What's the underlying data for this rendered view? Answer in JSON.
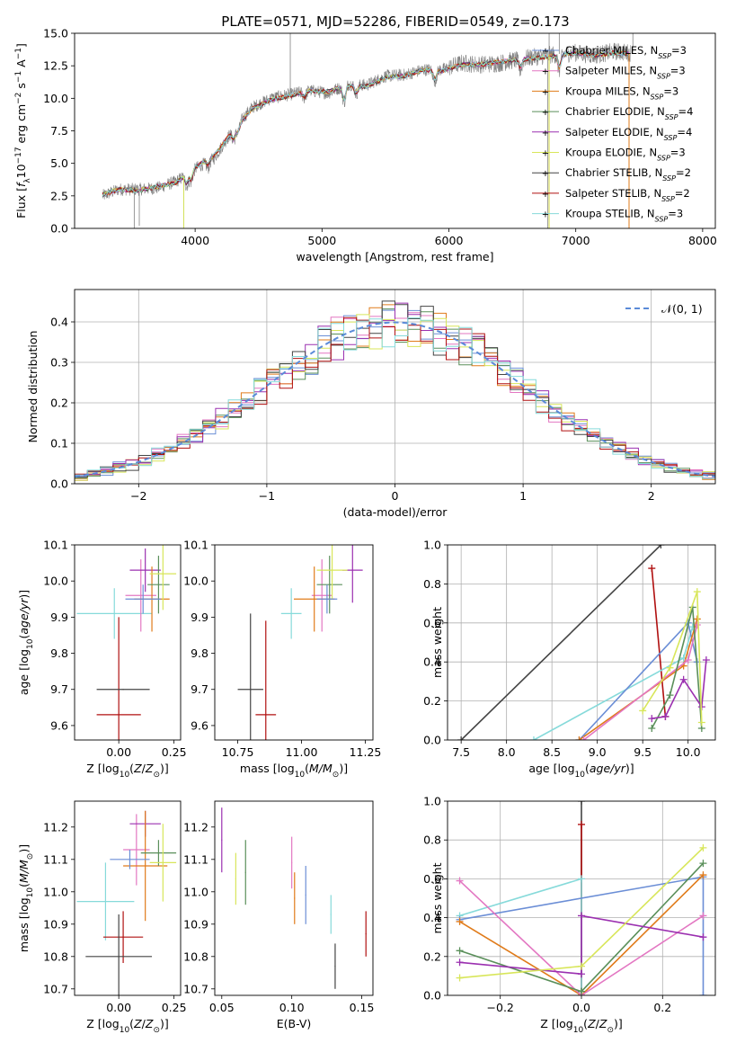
{
  "figure_title": "PLATE=0571, MJD=52286, FIBERID=0549, z=0.173",
  "colors": {
    "chabrier_miles": "#6b8ed6",
    "salpeter_miles": "#e377c2",
    "kroupa_miles": "#e07b1a",
    "chabrier_elodie": "#5a8f5a",
    "salpeter_elodie": "#9b30b0",
    "kroupa_elodie": "#d8e65a",
    "chabrier_stelib": "#444444",
    "salpeter_stelib": "#b01010",
    "kroupa_stelib": "#86dada",
    "observed": "#808080",
    "normal": "#5b8bd8"
  },
  "chart_data": [
    {
      "id": "spectrum",
      "type": "line",
      "xlabel": "wavelength [Angstrom, rest frame]",
      "ylabel": "Flux [f_λ 10^-17 erg cm^-2 s^-1 A^-1]",
      "xlim": [
        3050,
        8100
      ],
      "ylim": [
        0,
        15
      ],
      "xticks": [
        4000,
        5000,
        6000,
        7000,
        8000
      ],
      "yticks": [
        0.0,
        2.5,
        5.0,
        7.5,
        10.0,
        12.5,
        15.0
      ],
      "ytick_labels": [
        "0.0",
        "2.5",
        "5.0",
        "7.5",
        "10.0",
        "12.5",
        "15.0"
      ],
      "legend_position": "top-right",
      "legend": [
        {
          "label": "Chabrier MILES, N",
          "sub": "SSP",
          "tail": "=3",
          "color": "#6b8ed6"
        },
        {
          "label": "Salpeter MILES, N",
          "sub": "SSP",
          "tail": "=3",
          "color": "#e377c2"
        },
        {
          "label": "Kroupa MILES, N",
          "sub": "SSP",
          "tail": "=3",
          "color": "#e07b1a"
        },
        {
          "label": "Chabrier ELODIE, N",
          "sub": "SSP",
          "tail": "=4",
          "color": "#5a8f5a"
        },
        {
          "label": "Salpeter ELODIE, N",
          "sub": "SSP",
          "tail": "=4",
          "color": "#9b30b0"
        },
        {
          "label": "Kroupa ELODIE, N",
          "sub": "SSP",
          "tail": "=3",
          "color": "#d8e65a"
        },
        {
          "label": "Chabrier STELIB, N",
          "sub": "SSP",
          "tail": "=2",
          "color": "#444444"
        },
        {
          "label": "Salpeter STELIB, N",
          "sub": "SSP",
          "tail": "=2",
          "color": "#b01010"
        },
        {
          "label": "Kroupa STELIB, N",
          "sub": "SSP",
          "tail": "=3",
          "color": "#86dada"
        }
      ],
      "series": [
        {
          "name": "observed",
          "x": [
            3270,
            3400,
            3550,
            3700,
            3850,
            4000,
            4150,
            4300,
            4450,
            4600,
            4750,
            4900,
            5050,
            5200,
            5350,
            5500,
            5650,
            5800,
            5950,
            6100,
            6250,
            6400,
            6550,
            6700,
            6850,
            7000,
            7150,
            7300,
            7430
          ],
          "y": [
            2.5,
            3.0,
            3.0,
            3.1,
            3.6,
            4.6,
            5.4,
            7.6,
            9.3,
            10.0,
            10.3,
            10.6,
            10.4,
            11.1,
            11.0,
            11.7,
            11.8,
            12.2,
            12.2,
            12.7,
            12.6,
            12.7,
            13.0,
            13.2,
            13.4,
            13.5,
            13.3,
            13.6,
            13.5
          ]
        },
        {
          "name": "models",
          "x": [
            3270,
            3400,
            3550,
            3700,
            3850,
            4000,
            4150,
            4300,
            4450,
            4600,
            4750,
            4900,
            5050,
            5200,
            5350,
            5500,
            5650,
            5800,
            5950,
            6100,
            6250,
            6400,
            6550,
            6700,
            6850,
            7000,
            7150,
            7300,
            7430
          ],
          "y": [
            2.6,
            3.0,
            2.9,
            3.2,
            3.5,
            4.7,
            5.6,
            7.5,
            9.2,
            9.9,
            10.2,
            10.6,
            10.5,
            11.0,
            10.9,
            11.6,
            11.7,
            12.2,
            12.1,
            12.6,
            12.6,
            12.8,
            13.0,
            13.1,
            13.3,
            13.5,
            13.3,
            13.5,
            13.4
          ]
        }
      ]
    },
    {
      "id": "residuals",
      "type": "area",
      "xlabel": "(data-model)/error",
      "ylabel": "Normed distribution",
      "xlim": [
        -2.5,
        2.5
      ],
      "ylim": [
        0,
        0.48
      ],
      "xticks": [
        -2,
        -1,
        0,
        1,
        2
      ],
      "xtick_labels": [
        "−2",
        "−1",
        "0",
        "1",
        "2"
      ],
      "yticks": [
        0.0,
        0.1,
        0.2,
        0.3,
        0.4
      ],
      "ytick_labels": [
        "0.0",
        "0.1",
        "0.2",
        "0.3",
        "0.4"
      ],
      "grid": true,
      "legend_position": "top-right",
      "legend": [
        {
          "label": "𝒩(0, 1)",
          "color": "#5b8bd8",
          "style": "dashed"
        }
      ],
      "bins": {
        "start": -2.5,
        "width": 0.1,
        "count": 50
      },
      "envelope_mean": 0.0,
      "envelope_sigma": 1.0
    },
    {
      "id": "age_vs_Z",
      "type": "scatter",
      "xlabel": "Z [log10(Z/Z⊙)]",
      "ylabel": "age  [log10(age/yr)]",
      "xlim": [
        -0.2,
        0.28
      ],
      "ylim": [
        9.56,
        10.1
      ],
      "xticks": [
        0.0,
        0.25
      ],
      "xtick_labels": [
        "0.00",
        "0.25"
      ],
      "yticks": [
        9.6,
        9.7,
        9.8,
        9.9,
        10.0,
        10.1
      ],
      "ytick_labels": [
        "9.6",
        "9.7",
        "9.8",
        "9.9",
        "10.0",
        "10.1"
      ],
      "points": [
        {
          "x": -0.02,
          "y": 9.91,
          "xerr": 0.17,
          "yerr": 0.07,
          "color": "#86dada"
        },
        {
          "x": 0.0,
          "y": 9.63,
          "xerr": 0.1,
          "yerr": 0.27,
          "color": "#b01010"
        },
        {
          "x": 0.02,
          "y": 9.7,
          "xerr": 0.12,
          "yerr": 0.0,
          "color": "#444444"
        },
        {
          "x": 0.1,
          "y": 9.96,
          "xerr": 0.07,
          "yerr": 0.1,
          "color": "#e377c2"
        },
        {
          "x": 0.12,
          "y": 10.03,
          "xerr": 0.07,
          "yerr": 0.06,
          "color": "#9b30b0"
        },
        {
          "x": 0.15,
          "y": 9.95,
          "xerr": 0.08,
          "yerr": 0.09,
          "color": "#e07b1a"
        },
        {
          "x": 0.18,
          "y": 9.99,
          "xerr": 0.05,
          "yerr": 0.08,
          "color": "#5a8f5a"
        },
        {
          "x": 0.2,
          "y": 10.02,
          "xerr": 0.06,
          "yerr": 0.1,
          "color": "#d8e65a"
        },
        {
          "x": 0.11,
          "y": 9.95,
          "xerr": 0.08,
          "yerr": 0.04,
          "color": "#6b8ed6"
        }
      ]
    },
    {
      "id": "age_vs_mass",
      "type": "scatter",
      "xlabel": "mass [log10(M/M⊙)]",
      "ylabel": "",
      "xlim": [
        10.66,
        11.28
      ],
      "ylim": [
        9.56,
        10.1
      ],
      "xticks": [
        10.75,
        11.0,
        11.25
      ],
      "xtick_labels": [
        "10.75",
        "11.00",
        "11.25"
      ],
      "yticks": [
        9.6,
        9.7,
        9.8,
        9.9,
        10.0,
        10.1
      ],
      "ytick_labels": [
        "9.6",
        "9.7",
        "9.8",
        "9.9",
        "10.0",
        "10.1"
      ],
      "points": [
        {
          "x": 10.96,
          "y": 9.91,
          "xerr": 0.04,
          "yerr": 0.07,
          "color": "#86dada"
        },
        {
          "x": 10.86,
          "y": 9.63,
          "xerr": 0.04,
          "yerr": 0.26,
          "color": "#b01010"
        },
        {
          "x": 10.8,
          "y": 9.7,
          "xerr": 0.05,
          "yerr": 0.21,
          "color": "#444444"
        },
        {
          "x": 11.08,
          "y": 9.96,
          "xerr": 0.04,
          "yerr": 0.1,
          "color": "#e377c2"
        },
        {
          "x": 11.2,
          "y": 10.03,
          "xerr": 0.04,
          "yerr": 0.09,
          "color": "#9b30b0"
        },
        {
          "x": 11.05,
          "y": 9.95,
          "xerr": 0.08,
          "yerr": 0.09,
          "color": "#e07b1a"
        },
        {
          "x": 11.11,
          "y": 9.99,
          "xerr": 0.05,
          "yerr": 0.08,
          "color": "#5a8f5a"
        },
        {
          "x": 11.12,
          "y": 10.03,
          "xerr": 0.06,
          "yerr": 0.08,
          "color": "#d8e65a"
        },
        {
          "x": 11.1,
          "y": 9.95,
          "xerr": 0.04,
          "yerr": 0.04,
          "color": "#6b8ed6"
        }
      ]
    },
    {
      "id": "weight_vs_age",
      "type": "line",
      "xlabel": "age  [log10(age/yr)]",
      "ylabel": "mass weight",
      "xlim": [
        7.35,
        10.3
      ],
      "ylim": [
        0,
        1
      ],
      "xticks": [
        7.5,
        8.0,
        8.5,
        9.0,
        9.5,
        10.0
      ],
      "xtick_labels": [
        "7.5",
        "8.0",
        "8.5",
        "9.0",
        "9.5",
        "10.0"
      ],
      "yticks": [
        0.0,
        0.2,
        0.4,
        0.6,
        0.8,
        1.0
      ],
      "ytick_labels": [
        "0.0",
        "0.2",
        "0.4",
        "0.6",
        "0.8",
        "1.0"
      ],
      "grid": true,
      "series": [
        {
          "color": "#444444",
          "x": [
            7.5,
            9.7
          ],
          "y": [
            0.0,
            1.0
          ]
        },
        {
          "color": "#b01010",
          "x": [
            9.6,
            9.75
          ],
          "y": [
            0.88,
            0.12
          ]
        },
        {
          "color": "#86dada",
          "x": [
            8.3,
            9.95,
            10.05
          ],
          "y": [
            0.0,
            0.42,
            0.58
          ]
        },
        {
          "color": "#6b8ed6",
          "x": [
            8.8,
            10.0,
            10.1
          ],
          "y": [
            0.0,
            0.6,
            0.4
          ]
        },
        {
          "color": "#e07b1a",
          "x": [
            8.8,
            9.95,
            10.1
          ],
          "y": [
            0.0,
            0.38,
            0.62
          ]
        },
        {
          "color": "#e377c2",
          "x": [
            8.85,
            10.0,
            10.1
          ],
          "y": [
            0.0,
            0.41,
            0.59
          ]
        },
        {
          "color": "#5a8f5a",
          "x": [
            9.6,
            9.8,
            10.05,
            10.15
          ],
          "y": [
            0.06,
            0.23,
            0.68,
            0.06
          ]
        },
        {
          "color": "#9b30b0",
          "x": [
            9.6,
            9.75,
            9.95,
            10.15,
            10.2
          ],
          "y": [
            0.11,
            0.12,
            0.31,
            0.17,
            0.41
          ]
        },
        {
          "color": "#d8e65a",
          "x": [
            9.5,
            9.8,
            10.1,
            10.15
          ],
          "y": [
            0.15,
            0.37,
            0.76,
            0.09
          ]
        }
      ]
    },
    {
      "id": "mass_vs_Z",
      "type": "scatter",
      "xlabel": "Z [log10(Z/Z⊙)]",
      "ylabel": "mass [log10(M/M⊙)]",
      "xlim": [
        -0.2,
        0.28
      ],
      "ylim": [
        10.68,
        11.28
      ],
      "xticks": [
        0.0,
        0.25
      ],
      "xtick_labels": [
        "0.00",
        "0.25"
      ],
      "yticks": [
        10.7,
        10.8,
        10.9,
        11.0,
        11.1,
        11.2
      ],
      "ytick_labels": [
        "10.7",
        "10.8",
        "10.9",
        "11.0",
        "11.1",
        "11.2"
      ],
      "points": [
        {
          "x": -0.06,
          "y": 10.97,
          "xerr": 0.13,
          "yerr": 0.12,
          "color": "#86dada"
        },
        {
          "x": 0.02,
          "y": 10.86,
          "xerr": 0.09,
          "yerr": 0.08,
          "color": "#b01010"
        },
        {
          "x": 0.0,
          "y": 10.8,
          "xerr": 0.15,
          "yerr": 0.13,
          "color": "#444444"
        },
        {
          "x": 0.08,
          "y": 11.13,
          "xerr": 0.06,
          "yerr": 0.11,
          "color": "#e377c2"
        },
        {
          "x": 0.12,
          "y": 11.21,
          "xerr": 0.07,
          "yerr": 0.04,
          "color": "#9b30b0"
        },
        {
          "x": 0.12,
          "y": 11.08,
          "xerr": 0.1,
          "yerr": 0.17,
          "color": "#e07b1a"
        },
        {
          "x": 0.18,
          "y": 11.12,
          "xerr": 0.08,
          "yerr": 0.04,
          "color": "#5a8f5a"
        },
        {
          "x": 0.2,
          "y": 11.09,
          "xerr": 0.06,
          "yerr": 0.12,
          "color": "#d8e65a"
        },
        {
          "x": 0.05,
          "y": 11.1,
          "xerr": 0.09,
          "yerr": 0.03,
          "color": "#6b8ed6"
        }
      ]
    },
    {
      "id": "mass_vs_EBV",
      "type": "scatter",
      "xlabel": "E(B-V)",
      "ylabel": "",
      "xlim": [
        0.045,
        0.158
      ],
      "ylim": [
        10.68,
        11.28
      ],
      "xticks": [
        0.05,
        0.1,
        0.15
      ],
      "xtick_labels": [
        "0.05",
        "0.10",
        "0.15"
      ],
      "yticks": [
        10.7,
        10.8,
        10.9,
        11.0,
        11.1,
        11.2
      ],
      "ytick_labels": [
        "10.7",
        "10.8",
        "10.9",
        "11.0",
        "11.1",
        "11.2"
      ],
      "points": [
        {
          "x": 0.05,
          "y": 11.16,
          "xerr": 0.0,
          "yerr": 0.1,
          "color": "#9b30b0"
        },
        {
          "x": 0.06,
          "y": 11.04,
          "xerr": 0.0,
          "yerr": 0.08,
          "color": "#d8e65a"
        },
        {
          "x": 0.067,
          "y": 11.06,
          "xerr": 0.0,
          "yerr": 0.1,
          "color": "#5a8f5a"
        },
        {
          "x": 0.1,
          "y": 11.09,
          "xerr": 0.0,
          "yerr": 0.08,
          "color": "#e377c2"
        },
        {
          "x": 0.102,
          "y": 10.98,
          "xerr": 0.0,
          "yerr": 0.08,
          "color": "#e07b1a"
        },
        {
          "x": 0.11,
          "y": 10.99,
          "xerr": 0.0,
          "yerr": 0.09,
          "color": "#6b8ed6"
        },
        {
          "x": 0.128,
          "y": 10.93,
          "xerr": 0.0,
          "yerr": 0.06,
          "color": "#86dada"
        },
        {
          "x": 0.131,
          "y": 10.77,
          "xerr": 0.0,
          "yerr": 0.07,
          "color": "#444444"
        },
        {
          "x": 0.153,
          "y": 10.87,
          "xerr": 0.0,
          "yerr": 0.07,
          "color": "#b01010"
        }
      ]
    },
    {
      "id": "weight_vs_Z",
      "type": "line",
      "xlabel": "Z [log10(Z/Z⊙)]",
      "ylabel": "mass weight",
      "xlim": [
        -0.33,
        0.33
      ],
      "ylim": [
        0,
        1
      ],
      "xticks": [
        -0.2,
        0.0,
        0.2
      ],
      "xtick_labels": [
        "−0.2",
        "0.0",
        "0.2"
      ],
      "yticks": [
        0.0,
        0.2,
        0.4,
        0.6,
        0.8,
        1.0
      ],
      "ytick_labels": [
        "0.0",
        "0.2",
        "0.4",
        "0.6",
        "0.8",
        "1.0"
      ],
      "grid": true,
      "series": [
        {
          "color": "#444444",
          "x": [
            0.0,
            0.0
          ],
          "y": [
            0.0,
            1.0
          ]
        },
        {
          "color": "#b01010",
          "x": [
            0.0,
            0.0
          ],
          "y": [
            0.0,
            0.88
          ]
        },
        {
          "color": "#86dada",
          "x": [
            -0.3,
            0.0,
            0.0
          ],
          "y": [
            0.41,
            0.6,
            0.0
          ]
        },
        {
          "color": "#6b8ed6",
          "x": [
            -0.3,
            0.3,
            0.3
          ],
          "y": [
            0.39,
            0.61,
            0.0
          ]
        },
        {
          "color": "#e07b1a",
          "x": [
            -0.3,
            0.0,
            0.3
          ],
          "y": [
            0.38,
            0.0,
            0.62
          ]
        },
        {
          "color": "#e377c2",
          "x": [
            -0.3,
            0.0,
            0.3
          ],
          "y": [
            0.59,
            0.0,
            0.41
          ]
        },
        {
          "color": "#5a8f5a",
          "x": [
            -0.3,
            0.0,
            0.3
          ],
          "y": [
            0.23,
            0.02,
            0.68
          ]
        },
        {
          "color": "#9b30b0",
          "x": [
            -0.3,
            0.0,
            0.0,
            0.3
          ],
          "y": [
            0.17,
            0.11,
            0.41,
            0.3
          ]
        },
        {
          "color": "#d8e65a",
          "x": [
            -0.3,
            0.0,
            0.3
          ],
          "y": [
            0.09,
            0.15,
            0.76
          ]
        }
      ]
    }
  ]
}
